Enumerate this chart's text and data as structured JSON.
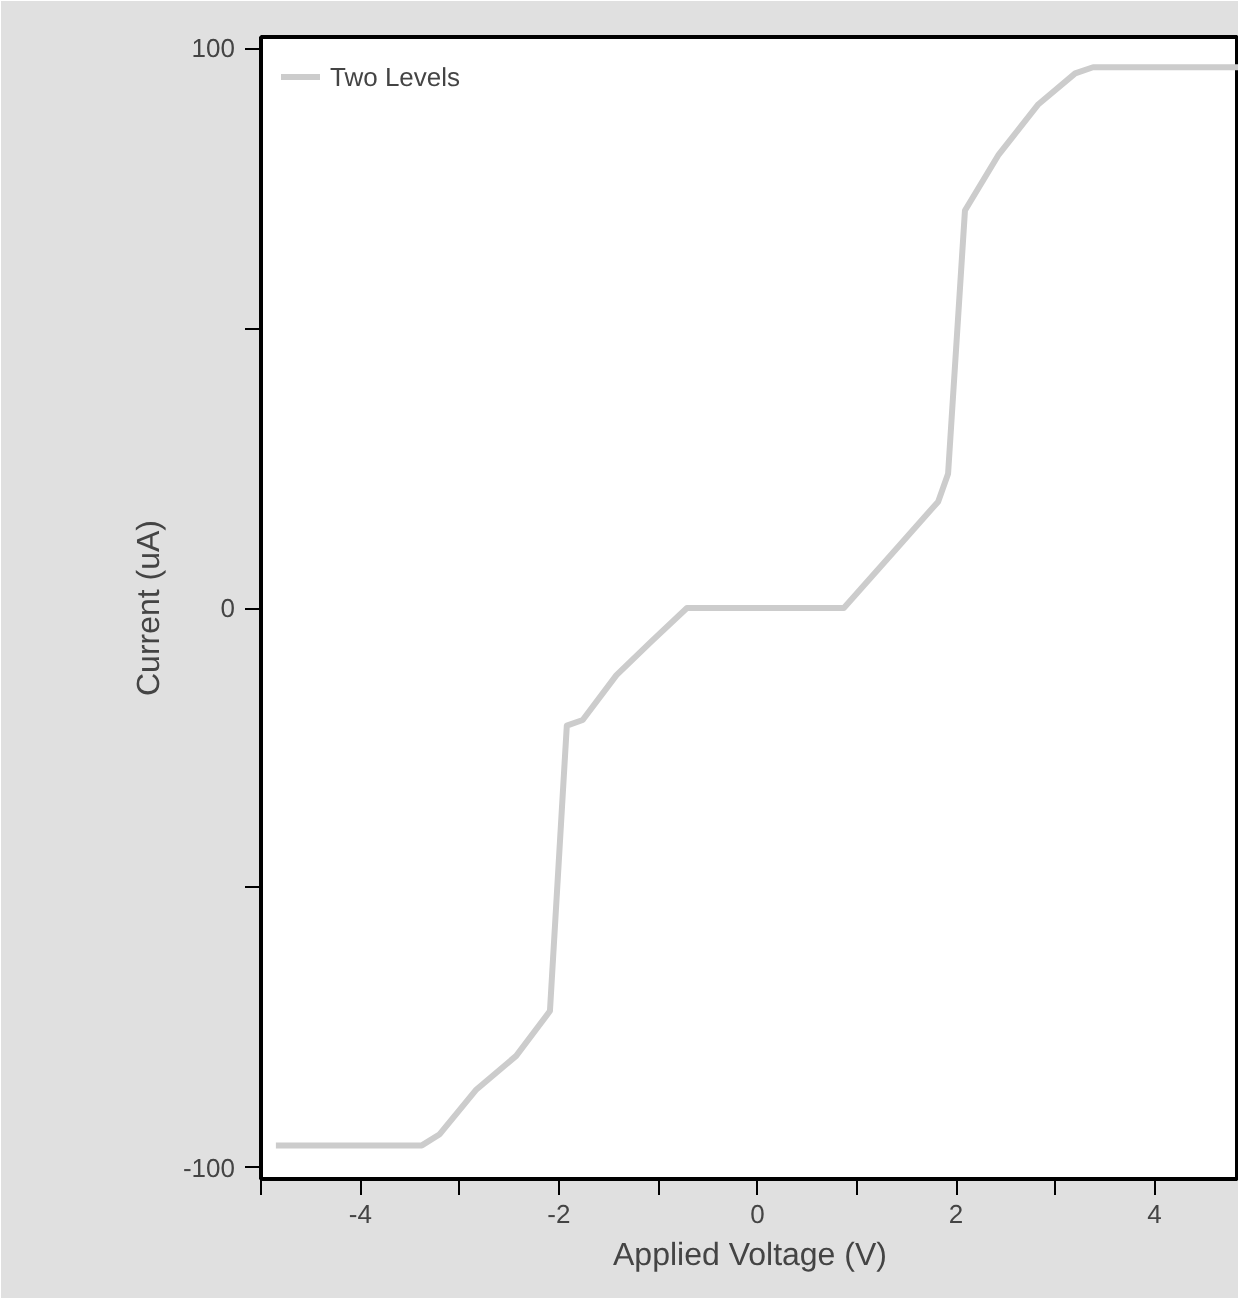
{
  "chart_data": {
    "type": "line",
    "xlabel": "Applied Voltage (V)",
    "ylabel": "Current (uA)",
    "x": [
      -4.85,
      -3.38,
      -3.2,
      -2.83,
      -2.43,
      -2.09,
      -1.92,
      -1.76,
      -1.42,
      -1.07,
      -0.71,
      0.87,
      1.42,
      1.82,
      1.92,
      2.09,
      2.43,
      2.83,
      3.2,
      3.38,
      4.85
    ],
    "series": [
      {
        "name": "Two Levels",
        "color": "#cccccc",
        "values": [
          -96,
          -96,
          -94,
          -86,
          -80,
          -72,
          -21,
          -20,
          -12,
          -6,
          0,
          0,
          11,
          19,
          24,
          71,
          81,
          90,
          95.5,
          96.6,
          96.6
        ]
      }
    ],
    "xlim": [
      -5,
      4.85
    ],
    "ylim": [
      -102,
      102
    ],
    "xticks": [
      {
        "value": -5,
        "label": null
      },
      -4,
      {
        "value": -3,
        "label": null
      },
      -2,
      {
        "value": -1,
        "label": null
      },
      0,
      {
        "value": 1,
        "label": null
      },
      2,
      {
        "value": 3,
        "label": null
      },
      4
    ],
    "yticks": [
      -100,
      {
        "value": -50,
        "label": null
      },
      0,
      {
        "value": 50,
        "label": null
      },
      100
    ],
    "grid": false,
    "legend": "top left",
    "marker": "none",
    "line_style": "solid"
  }
}
